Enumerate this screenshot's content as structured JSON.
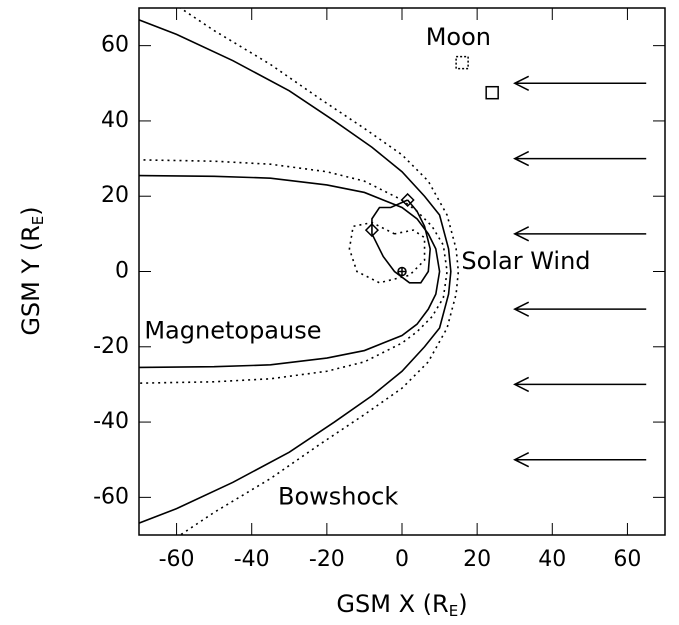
{
  "chart_data": {
    "type": "line",
    "xlabel": [
      "GSM X (R",
      "E",
      ")"
    ],
    "ylabel": [
      "GSM Y (R",
      "E",
      ")"
    ],
    "xlim": [
      -70,
      70
    ],
    "ylim": [
      -70,
      70
    ],
    "xticks": [
      -60,
      -40,
      -20,
      0,
      20,
      40,
      60
    ],
    "yticks": [
      -60,
      -40,
      -20,
      0,
      20,
      40,
      60
    ],
    "series": [
      {
        "dash": "solid",
        "color": "#000",
        "x": [
          -73,
          -60,
          -45,
          -30,
          -18,
          -8,
          0,
          6,
          10,
          12.4,
          13,
          12.4,
          10,
          6,
          0,
          -8,
          -18,
          -30,
          -45,
          -60,
          -73
        ],
        "y": [
          68,
          63,
          56,
          48,
          40,
          33,
          26.5,
          20,
          15,
          6,
          0,
          -6,
          -15,
          -20,
          -26.5,
          -33,
          -40,
          -48,
          -56,
          -63,
          -68
        ]
      },
      {
        "dash": "dotted",
        "color": "#000",
        "x": [
          -62,
          -50,
          -35,
          -22,
          -10,
          0,
          7,
          12,
          14.4,
          15,
          14.4,
          12,
          7,
          0,
          -10,
          -22,
          -35,
          -50,
          -62
        ],
        "y": [
          72,
          64,
          55,
          46,
          38,
          31,
          24,
          15,
          6,
          0,
          -6,
          -15,
          -24,
          -31,
          -38,
          -46,
          -55,
          -64,
          -72
        ]
      },
      {
        "dash": "solid",
        "color": "#000",
        "x": [
          -72,
          -50,
          -35,
          -20,
          -10,
          0,
          4,
          7,
          9,
          10,
          9,
          7,
          4,
          0,
          -10,
          -20,
          -35,
          -50,
          -72
        ],
        "y": [
          25.5,
          25.3,
          24.8,
          23,
          21,
          17,
          14,
          10,
          6,
          0,
          -6,
          -10,
          -14,
          -17,
          -21,
          -23,
          -24.8,
          -25.3,
          -25.5
        ]
      },
      {
        "dash": "dotted",
        "color": "#000",
        "x": [
          -72,
          -50,
          -35,
          -20,
          -10,
          0,
          4,
          8,
          11,
          12,
          11,
          8,
          4,
          0,
          -10,
          -20,
          -35,
          -50,
          -72
        ],
        "y": [
          29.7,
          29.3,
          28.5,
          26.5,
          24,
          19,
          16,
          12,
          7,
          0,
          -7,
          -12,
          -16,
          -19,
          -24,
          -26.5,
          -28.5,
          -29.3,
          -29.7
        ]
      },
      {
        "dash": "solid",
        "color": "#000",
        "x": [
          1.5,
          4,
          6,
          7.5,
          7,
          5,
          2,
          -2,
          -5,
          -8,
          -8,
          -6,
          -3,
          1.5
        ],
        "y": [
          19,
          16,
          12,
          6,
          0,
          -3,
          -3,
          0,
          4,
          10,
          14,
          17,
          17,
          19
        ]
      },
      {
        "dash": "dotted",
        "color": "#000",
        "x": [
          -2,
          -8,
          -13,
          -14,
          -12,
          -6,
          2,
          6,
          6,
          3,
          -2
        ],
        "y": [
          10,
          13,
          12,
          6,
          0,
          -3,
          -1,
          3,
          9,
          11,
          10
        ]
      }
    ],
    "markers": [
      {
        "symbol": "diamond",
        "x": 1.5,
        "y": 19
      },
      {
        "symbol": "diamond",
        "x": -8,
        "y": 11
      },
      {
        "symbol": "earth",
        "x": 0,
        "y": 0
      },
      {
        "symbol": "square-dotted",
        "x": 16,
        "y": 55.5
      },
      {
        "symbol": "square",
        "x": 24,
        "y": 47.5
      }
    ],
    "arrows": {
      "y": [
        50,
        30,
        10,
        -10,
        -30,
        -50
      ],
      "x_from": 65,
      "x_to": 30
    },
    "annotations": [
      "Moon",
      "Solar Wind",
      "Magnetopause",
      "Bowshock"
    ]
  }
}
